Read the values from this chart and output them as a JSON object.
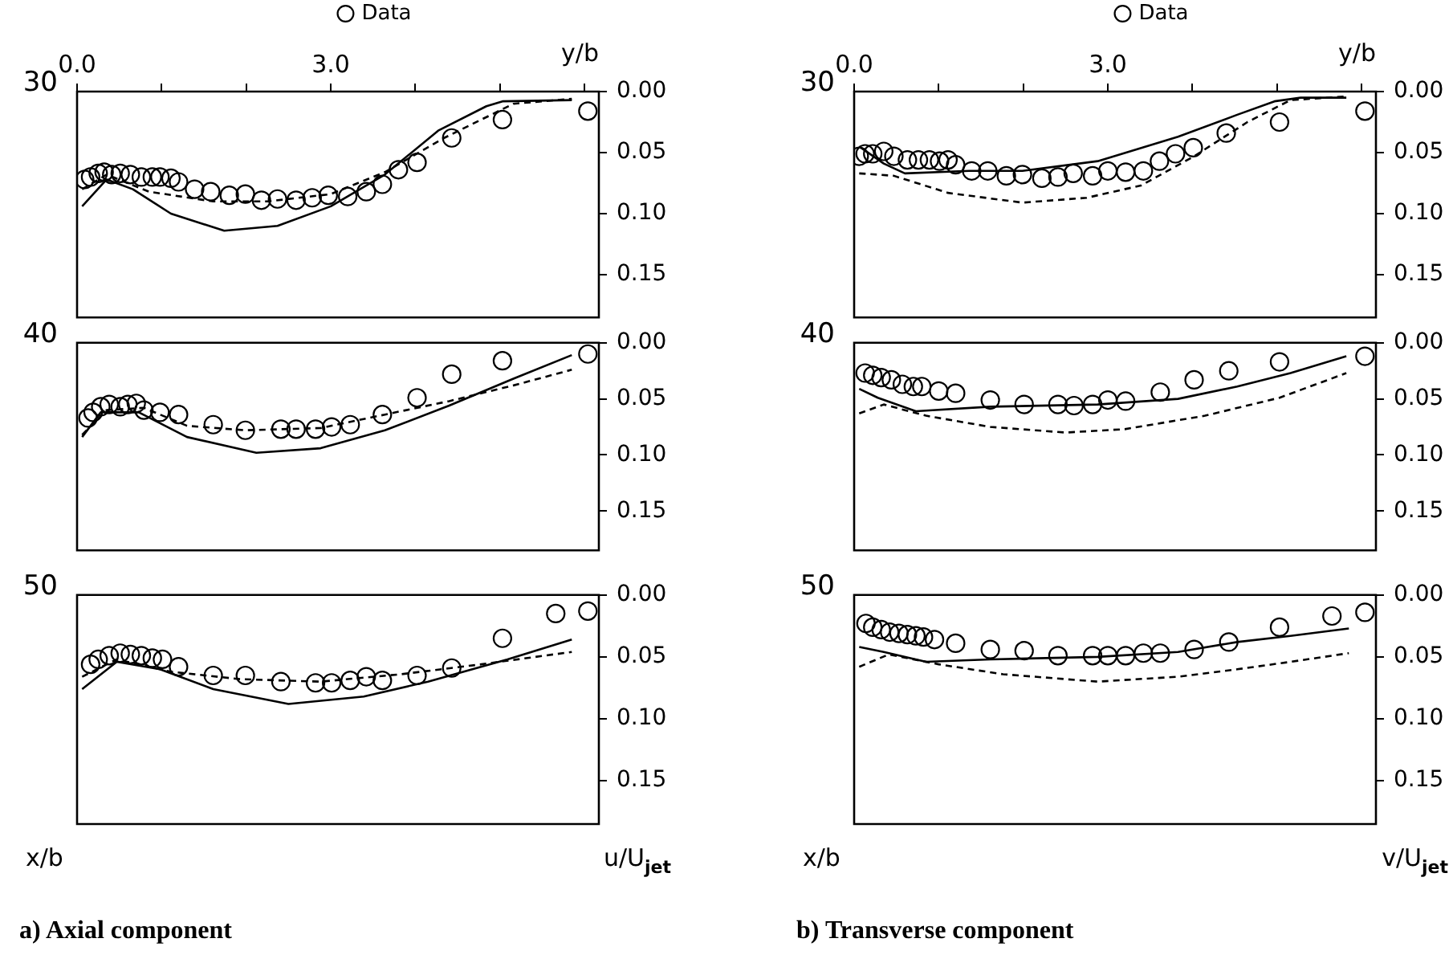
{
  "chart_data": [
    {
      "type": "line",
      "xlabel": "y/b",
      "legend": "top",
      "annotations": [
        "30"
      ],
      "xlim": [
        0,
        6.17
      ],
      "ylim": [
        0.185,
        0
      ],
      "xticks": [
        {
          "value": 0,
          "label": "0.0"
        },
        {
          "value": 1,
          "label": null
        },
        {
          "value": 2,
          "label": null
        },
        {
          "value": 3,
          "label": "3.0"
        },
        {
          "value": 4,
          "label": null
        },
        {
          "value": 5,
          "label": null
        },
        {
          "value": 6,
          "label": null
        }
      ],
      "yticks": [
        {
          "value": 0,
          "label": "0.00"
        },
        {
          "value": 0.05,
          "label": "0.05"
        },
        {
          "value": 0.1,
          "label": "0.10"
        },
        {
          "value": 0.15,
          "label": "0.15"
        }
      ],
      "series": [
        {
          "name": "Data",
          "type": "scatter",
          "marker": "circle",
          "color": "#000000",
          "x": [
            0.09,
            0.16,
            0.25,
            0.32,
            0.41,
            0.51,
            0.63,
            0.76,
            0.89,
            0.98,
            1.11,
            1.2,
            1.39,
            1.58,
            1.8,
            1.99,
            2.18,
            2.37,
            2.59,
            2.78,
            2.97,
            3.2,
            3.42,
            3.61,
            3.8,
            4.02,
            4.43,
            5.03,
            6.04
          ],
          "values": [
            0.072,
            0.07,
            0.067,
            0.066,
            0.068,
            0.067,
            0.068,
            0.07,
            0.07,
            0.07,
            0.071,
            0.074,
            0.08,
            0.082,
            0.085,
            0.084,
            0.089,
            0.088,
            0.089,
            0.087,
            0.085,
            0.086,
            0.082,
            0.076,
            0.064,
            0.058,
            0.038,
            0.023,
            0.016
          ]
        },
        {
          "type": "line",
          "marker": "none",
          "line_style": "solid",
          "color": "#000000",
          "x": [
            0.06,
            0.35,
            0.66,
            1.11,
            1.74,
            2.37,
            3.0,
            3.64,
            4.27,
            4.84,
            5.03,
            5.85
          ],
          "values": [
            0.094,
            0.072,
            0.08,
            0.1,
            0.114,
            0.11,
            0.094,
            0.068,
            0.032,
            0.012,
            0.008,
            0.007
          ]
        },
        {
          "type": "line",
          "marker": "none",
          "line_style": "dashed",
          "color": "#000000",
          "x": [
            0.06,
            0.35,
            0.85,
            1.61,
            2.25,
            3.0,
            3.64,
            4.34,
            5.16,
            5.85
          ],
          "values": [
            0.08,
            0.068,
            0.082,
            0.09,
            0.09,
            0.084,
            0.066,
            0.038,
            0.01,
            0.006
          ]
        }
      ]
    },
    {
      "type": "line",
      "tick_labels": "y",
      "annotations": [
        "40"
      ],
      "xlim": [
        0,
        6.17
      ],
      "ylim": [
        0.185,
        0
      ],
      "yticks": [
        {
          "value": 0,
          "label": "0.00"
        },
        {
          "value": 0.05,
          "label": "0.05"
        },
        {
          "value": 0.1,
          "label": "0.10"
        },
        {
          "value": 0.15,
          "label": "0.15"
        }
      ],
      "series": [
        {
          "type": "scatter",
          "marker": "circle",
          "color": "#000000",
          "x": [
            0.13,
            0.19,
            0.28,
            0.38,
            0.51,
            0.6,
            0.7,
            0.79,
            0.98,
            1.2,
            1.61,
            1.99,
            2.41,
            2.59,
            2.82,
            3.01,
            3.23,
            3.61,
            4.02,
            4.43,
            5.03,
            6.04
          ],
          "values": [
            0.067,
            0.062,
            0.057,
            0.055,
            0.057,
            0.055,
            0.054,
            0.06,
            0.062,
            0.064,
            0.073,
            0.078,
            0.077,
            0.077,
            0.077,
            0.075,
            0.073,
            0.064,
            0.049,
            0.028,
            0.016,
            0.01
          ]
        },
        {
          "type": "line",
          "marker": "none",
          "line_style": "solid",
          "color": "#000000",
          "x": [
            0.06,
            0.28,
            0.73,
            1.3,
            2.12,
            2.88,
            3.64,
            4.4,
            5.16,
            5.85
          ],
          "values": [
            0.084,
            0.062,
            0.062,
            0.084,
            0.098,
            0.094,
            0.078,
            0.056,
            0.032,
            0.011
          ]
        },
        {
          "type": "line",
          "marker": "none",
          "line_style": "dashed",
          "color": "#000000",
          "x": [
            0.06,
            0.35,
            0.79,
            1.3,
            1.99,
            2.88,
            3.64,
            4.4,
            5.16,
            5.85
          ],
          "values": [
            0.082,
            0.06,
            0.058,
            0.074,
            0.078,
            0.076,
            0.064,
            0.052,
            0.038,
            0.024
          ]
        }
      ]
    },
    {
      "type": "line",
      "tick_labels": "y",
      "ylabel": "u/U$_{jet}$",
      "annotations": [
        "50",
        "x/b",
        "a) Axial component"
      ],
      "xlim": [
        0,
        6.17
      ],
      "ylim": [
        0.185,
        0
      ],
      "yticks": [
        {
          "value": 0,
          "label": "0.00"
        },
        {
          "value": 0.05,
          "label": "0.05"
        },
        {
          "value": 0.1,
          "label": "0.10"
        },
        {
          "value": 0.15,
          "label": "0.15"
        }
      ],
      "series": [
        {
          "type": "scatter",
          "marker": "circle",
          "color": "#000000",
          "x": [
            0.16,
            0.25,
            0.38,
            0.51,
            0.63,
            0.76,
            0.89,
            1.01,
            1.2,
            1.61,
            1.99,
            2.41,
            2.82,
            3.01,
            3.23,
            3.42,
            3.61,
            4.02,
            4.43,
            5.03,
            5.66,
            6.04
          ],
          "values": [
            0.056,
            0.052,
            0.049,
            0.047,
            0.048,
            0.049,
            0.051,
            0.052,
            0.058,
            0.065,
            0.065,
            0.07,
            0.071,
            0.071,
            0.069,
            0.066,
            0.069,
            0.065,
            0.059,
            0.035,
            0.015,
            0.013
          ]
        },
        {
          "type": "line",
          "marker": "none",
          "line_style": "solid",
          "color": "#000000",
          "x": [
            0.06,
            0.47,
            0.98,
            1.61,
            2.5,
            3.39,
            4.15,
            5.09,
            5.85
          ],
          "values": [
            0.076,
            0.054,
            0.06,
            0.076,
            0.088,
            0.082,
            0.07,
            0.052,
            0.036
          ]
        },
        {
          "type": "line",
          "marker": "none",
          "line_style": "dashed",
          "color": "#000000",
          "x": [
            0.06,
            0.47,
            1.11,
            1.93,
            2.88,
            3.83,
            4.78,
            5.85
          ],
          "values": [
            0.066,
            0.052,
            0.062,
            0.068,
            0.07,
            0.064,
            0.056,
            0.046
          ]
        }
      ]
    },
    {
      "type": "line",
      "xlabel": "y/b",
      "legend": "top",
      "annotations": [
        "30"
      ],
      "xlim": [
        0,
        6.17
      ],
      "ylim": [
        0.185,
        0
      ],
      "xticks": [
        {
          "value": 0,
          "label": "0.0"
        },
        {
          "value": 1,
          "label": null
        },
        {
          "value": 2,
          "label": null
        },
        {
          "value": 3,
          "label": "3.0"
        },
        {
          "value": 4,
          "label": null
        },
        {
          "value": 5,
          "label": null
        },
        {
          "value": 6,
          "label": null
        }
      ],
      "yticks": [
        {
          "value": 0,
          "label": "0.00"
        },
        {
          "value": 0.05,
          "label": "0.05"
        },
        {
          "value": 0.1,
          "label": "0.10"
        },
        {
          "value": 0.15,
          "label": "0.15"
        }
      ],
      "series": [
        {
          "name": "Data",
          "type": "scatter",
          "marker": "circle",
          "color": "#000000",
          "x": [
            0.06,
            0.13,
            0.22,
            0.35,
            0.47,
            0.63,
            0.76,
            0.89,
            1.01,
            1.11,
            1.2,
            1.39,
            1.58,
            1.8,
            1.99,
            2.22,
            2.41,
            2.59,
            2.82,
            3.0,
            3.21,
            3.42,
            3.61,
            3.8,
            4.01,
            4.4,
            5.03,
            6.04
          ],
          "values": [
            0.053,
            0.051,
            0.051,
            0.049,
            0.053,
            0.056,
            0.056,
            0.056,
            0.057,
            0.056,
            0.06,
            0.065,
            0.065,
            0.069,
            0.068,
            0.071,
            0.07,
            0.067,
            0.069,
            0.065,
            0.066,
            0.065,
            0.057,
            0.051,
            0.046,
            0.034,
            0.025,
            0.016
          ]
        },
        {
          "type": "line",
          "marker": "none",
          "line_style": "solid",
          "color": "#000000",
          "x": [
            0.06,
            0.35,
            0.6,
            1.36,
            1.99,
            2.88,
            3.83,
            4.53,
            4.97,
            5.28,
            5.82
          ],
          "values": [
            0.045,
            0.059,
            0.067,
            0.065,
            0.065,
            0.057,
            0.037,
            0.019,
            0.008,
            0.005,
            0.005
          ]
        },
        {
          "type": "line",
          "marker": "none",
          "line_style": "dashed",
          "color": "#000000",
          "x": [
            0.06,
            0.47,
            1.11,
            1.99,
            2.75,
            3.39,
            4.02,
            4.65,
            5.16,
            5.82
          ],
          "values": [
            0.067,
            0.069,
            0.083,
            0.091,
            0.087,
            0.077,
            0.053,
            0.025,
            0.007,
            0.004
          ]
        }
      ]
    },
    {
      "type": "line",
      "tick_labels": "y",
      "annotations": [
        "40"
      ],
      "xlim": [
        0,
        6.17
      ],
      "ylim": [
        0.185,
        0
      ],
      "yticks": [
        {
          "value": 0,
          "label": "0.00"
        },
        {
          "value": 0.05,
          "label": "0.05"
        },
        {
          "value": 0.1,
          "label": "0.10"
        },
        {
          "value": 0.15,
          "label": "0.15"
        }
      ],
      "series": [
        {
          "type": "scatter",
          "marker": "circle",
          "color": "#000000",
          "x": [
            0.13,
            0.22,
            0.32,
            0.44,
            0.57,
            0.7,
            0.8,
            1.0,
            1.2,
            1.61,
            2.01,
            2.41,
            2.6,
            2.82,
            3.0,
            3.21,
            3.62,
            4.02,
            4.43,
            5.03,
            6.04
          ],
          "values": [
            0.027,
            0.029,
            0.031,
            0.033,
            0.037,
            0.039,
            0.039,
            0.043,
            0.045,
            0.051,
            0.055,
            0.055,
            0.056,
            0.055,
            0.051,
            0.052,
            0.044,
            0.033,
            0.025,
            0.017,
            0.012
          ]
        },
        {
          "type": "line",
          "marker": "none",
          "line_style": "solid",
          "color": "#000000",
          "x": [
            0.06,
            0.28,
            0.73,
            1.61,
            2.88,
            3.83,
            4.53,
            5.16,
            5.82
          ],
          "values": [
            0.041,
            0.049,
            0.061,
            0.057,
            0.055,
            0.05,
            0.039,
            0.027,
            0.012
          ]
        },
        {
          "type": "line",
          "marker": "none",
          "line_style": "dashed",
          "color": "#000000",
          "x": [
            0.06,
            0.35,
            0.85,
            1.61,
            2.5,
            3.2,
            4.15,
            5.03,
            5.82
          ],
          "values": [
            0.063,
            0.055,
            0.065,
            0.075,
            0.08,
            0.077,
            0.065,
            0.049,
            0.027
          ]
        }
      ]
    },
    {
      "type": "line",
      "tick_labels": "y",
      "ylabel": "v/U$_{jet}$",
      "annotations": [
        "50",
        "x/b",
        "b) Transverse component"
      ],
      "xlim": [
        0,
        6.17
      ],
      "ylim": [
        0.185,
        0
      ],
      "yticks": [
        {
          "value": 0,
          "label": "0.00"
        },
        {
          "value": 0.05,
          "label": "0.05"
        },
        {
          "value": 0.1,
          "label": "0.10"
        },
        {
          "value": 0.15,
          "label": "0.15"
        }
      ],
      "series": [
        {
          "type": "scatter",
          "marker": "circle",
          "color": "#000000",
          "x": [
            0.14,
            0.22,
            0.32,
            0.42,
            0.53,
            0.63,
            0.73,
            0.82,
            0.95,
            1.2,
            1.61,
            2.01,
            2.41,
            2.82,
            3.0,
            3.21,
            3.42,
            3.62,
            4.02,
            4.43,
            5.03,
            5.65,
            6.04
          ],
          "values": [
            0.023,
            0.026,
            0.028,
            0.03,
            0.031,
            0.032,
            0.033,
            0.034,
            0.036,
            0.039,
            0.044,
            0.045,
            0.049,
            0.049,
            0.049,
            0.049,
            0.047,
            0.047,
            0.044,
            0.038,
            0.026,
            0.017,
            0.014
          ]
        },
        {
          "type": "line",
          "marker": "none",
          "line_style": "solid",
          "color": "#000000",
          "x": [
            0.06,
            0.35,
            0.85,
            1.61,
            2.88,
            3.83,
            4.53,
            5.16,
            5.85
          ],
          "values": [
            0.042,
            0.046,
            0.054,
            0.052,
            0.05,
            0.046,
            0.038,
            0.033,
            0.027
          ]
        },
        {
          "type": "line",
          "marker": "none",
          "line_style": "dashed",
          "color": "#000000",
          "x": [
            0.06,
            0.41,
            1.0,
            1.76,
            2.88,
            3.83,
            4.53,
            5.16,
            5.85
          ],
          "values": [
            0.058,
            0.048,
            0.056,
            0.064,
            0.07,
            0.066,
            0.06,
            0.054,
            0.047
          ]
        }
      ]
    }
  ]
}
